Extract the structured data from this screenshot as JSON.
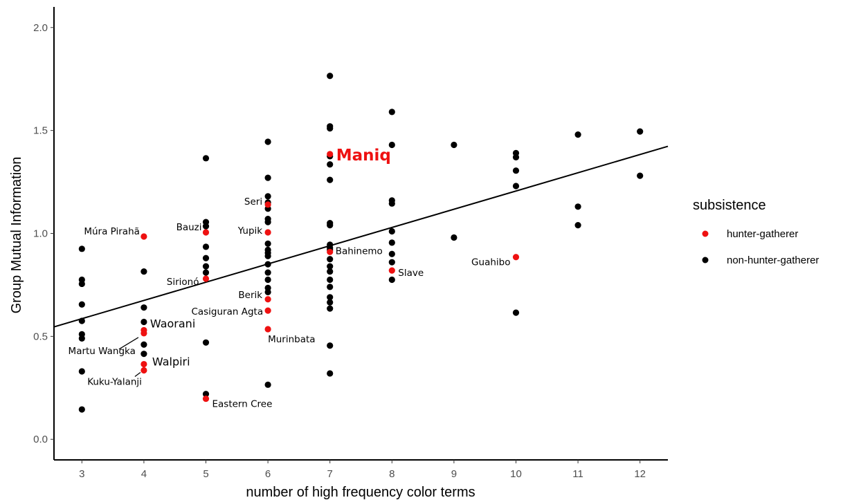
{
  "chart_data": {
    "type": "scatter",
    "xlabel": "number of high frequency color terms",
    "ylabel": "Group Mutual Information",
    "xlim": [
      2.55,
      12.45
    ],
    "ylim": [
      -0.1,
      2.1
    ],
    "x_ticks": [
      3,
      4,
      5,
      6,
      7,
      8,
      9,
      10,
      11,
      12
    ],
    "y_ticks": [
      "0.0",
      "0.5",
      "1.0",
      "1.5",
      "2.0"
    ],
    "y_tick_values": [
      0,
      0.5,
      1.0,
      1.5,
      2.0
    ],
    "grid": false,
    "legend": {
      "title": "subsistence",
      "placement": "right",
      "entries": [
        {
          "label": "hunter-gatherer",
          "color": "#ee1111"
        },
        {
          "label": "non-hunter-gatherer",
          "color": "#000000"
        }
      ]
    },
    "regression_line": {
      "x": [
        2.55,
        12.45
      ],
      "y": [
        0.546,
        1.423
      ]
    },
    "series": [
      {
        "name": "hunter-gatherer",
        "color": "#ee1111",
        "points": [
          {
            "x": 4,
            "y": 0.985,
            "label": "Múra Pirahã"
          },
          {
            "x": 4,
            "y": 0.53,
            "label": "Waorani"
          },
          {
            "x": 4,
            "y": 0.515,
            "label": "Martu Wangka"
          },
          {
            "x": 4,
            "y": 0.365,
            "label": "Walpiri"
          },
          {
            "x": 4,
            "y": 0.335,
            "label": "Kuku-Yalanji"
          },
          {
            "x": 5,
            "y": 1.005,
            "label": "Bauzi"
          },
          {
            "x": 5,
            "y": 0.78,
            "label": "Sirionó"
          },
          {
            "x": 5,
            "y": 0.197,
            "label": "Eastern Cree"
          },
          {
            "x": 6,
            "y": 1.14,
            "label": "Seri"
          },
          {
            "x": 6,
            "y": 1.005,
            "label": "Yupik"
          },
          {
            "x": 6,
            "y": 0.68,
            "label": "Berik"
          },
          {
            "x": 6,
            "y": 0.625,
            "label": "Casiguran Agta"
          },
          {
            "x": 6,
            "y": 0.535,
            "label": "Murinbata"
          },
          {
            "x": 7,
            "y": 1.385,
            "label": "Maniq"
          },
          {
            "x": 7,
            "y": 0.91,
            "label": "Bahinemo"
          },
          {
            "x": 8,
            "y": 0.82,
            "label": "Slave"
          },
          {
            "x": 10,
            "y": 0.885,
            "label": "Guahibo"
          }
        ]
      },
      {
        "name": "non-hunter-gatherer",
        "color": "#000000",
        "points": [
          {
            "x": 3,
            "y": 0.925
          },
          {
            "x": 3,
            "y": 0.775
          },
          {
            "x": 3,
            "y": 0.755
          },
          {
            "x": 3,
            "y": 0.655
          },
          {
            "x": 3,
            "y": 0.575
          },
          {
            "x": 3,
            "y": 0.51
          },
          {
            "x": 3,
            "y": 0.49
          },
          {
            "x": 3,
            "y": 0.33
          },
          {
            "x": 3,
            "y": 0.145
          },
          {
            "x": 4,
            "y": 0.815
          },
          {
            "x": 4,
            "y": 0.64
          },
          {
            "x": 4,
            "y": 0.57
          },
          {
            "x": 4,
            "y": 0.46
          },
          {
            "x": 4,
            "y": 0.415
          },
          {
            "x": 5,
            "y": 1.365
          },
          {
            "x": 5,
            "y": 1.055
          },
          {
            "x": 5,
            "y": 1.035
          },
          {
            "x": 5,
            "y": 0.935
          },
          {
            "x": 5,
            "y": 0.88
          },
          {
            "x": 5,
            "y": 0.84
          },
          {
            "x": 5,
            "y": 0.81
          },
          {
            "x": 5,
            "y": 0.47
          },
          {
            "x": 5,
            "y": 0.22
          },
          {
            "x": 6,
            "y": 1.445
          },
          {
            "x": 6,
            "y": 1.27
          },
          {
            "x": 6,
            "y": 1.18
          },
          {
            "x": 6,
            "y": 1.15
          },
          {
            "x": 6,
            "y": 1.12
          },
          {
            "x": 6,
            "y": 1.07
          },
          {
            "x": 6,
            "y": 1.055
          },
          {
            "x": 6,
            "y": 0.95
          },
          {
            "x": 6,
            "y": 0.92
          },
          {
            "x": 6,
            "y": 0.905
          },
          {
            "x": 6,
            "y": 0.89
          },
          {
            "x": 6,
            "y": 0.85
          },
          {
            "x": 6,
            "y": 0.81
          },
          {
            "x": 6,
            "y": 0.775
          },
          {
            "x": 6,
            "y": 0.735
          },
          {
            "x": 6,
            "y": 0.715
          },
          {
            "x": 6,
            "y": 0.265
          },
          {
            "x": 7,
            "y": 1.765
          },
          {
            "x": 7,
            "y": 1.52
          },
          {
            "x": 7,
            "y": 1.51
          },
          {
            "x": 7,
            "y": 1.375
          },
          {
            "x": 7,
            "y": 1.335
          },
          {
            "x": 7,
            "y": 1.26
          },
          {
            "x": 7,
            "y": 1.05
          },
          {
            "x": 7,
            "y": 1.04
          },
          {
            "x": 7,
            "y": 0.945
          },
          {
            "x": 7,
            "y": 0.93
          },
          {
            "x": 7,
            "y": 0.92
          },
          {
            "x": 7,
            "y": 0.875
          },
          {
            "x": 7,
            "y": 0.84
          },
          {
            "x": 7,
            "y": 0.815
          },
          {
            "x": 7,
            "y": 0.775
          },
          {
            "x": 7,
            "y": 0.74
          },
          {
            "x": 7,
            "y": 0.69
          },
          {
            "x": 7,
            "y": 0.665
          },
          {
            "x": 7,
            "y": 0.635
          },
          {
            "x": 7,
            "y": 0.455
          },
          {
            "x": 7,
            "y": 0.32
          },
          {
            "x": 8,
            "y": 1.59
          },
          {
            "x": 8,
            "y": 1.43
          },
          {
            "x": 8,
            "y": 1.16
          },
          {
            "x": 8,
            "y": 1.145
          },
          {
            "x": 8,
            "y": 1.01
          },
          {
            "x": 8,
            "y": 0.955
          },
          {
            "x": 8,
            "y": 0.9
          },
          {
            "x": 8,
            "y": 0.86
          },
          {
            "x": 8,
            "y": 0.775
          },
          {
            "x": 9,
            "y": 1.43
          },
          {
            "x": 9,
            "y": 0.98
          },
          {
            "x": 10,
            "y": 1.39
          },
          {
            "x": 10,
            "y": 1.37
          },
          {
            "x": 10,
            "y": 1.305
          },
          {
            "x": 10,
            "y": 1.23
          },
          {
            "x": 10,
            "y": 0.615
          },
          {
            "x": 11,
            "y": 1.48
          },
          {
            "x": 11,
            "y": 1.13
          },
          {
            "x": 11,
            "y": 1.04
          },
          {
            "x": 12,
            "y": 1.495
          },
          {
            "x": 12,
            "y": 1.28
          }
        ]
      }
    ]
  }
}
